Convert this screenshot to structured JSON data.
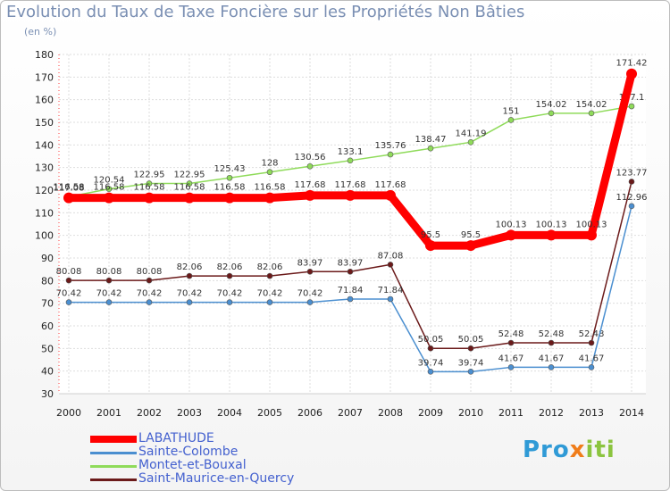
{
  "chart_data": {
    "type": "line",
    "title": "Evolution du Taux de Taxe Foncière sur les Propriétés Non Bâties",
    "subtitle": "(en %)",
    "ylim": [
      30,
      180
    ],
    "yticks": [
      30,
      40,
      50,
      60,
      70,
      80,
      90,
      100,
      110,
      120,
      130,
      140,
      150,
      160,
      170,
      180
    ],
    "categories": [
      "2000",
      "2001",
      "2002",
      "2003",
      "2004",
      "2005",
      "2006",
      "2007",
      "2008",
      "2009",
      "2010",
      "2011",
      "2012",
      "2013",
      "2014"
    ],
    "series": [
      {
        "name": "Saint-Maurice-en-Quercy",
        "color": "#6b1a1a",
        "values": [
          80.08,
          80.08,
          80.08,
          82.06,
          82.06,
          82.06,
          83.97,
          83.97,
          87.08,
          50.05,
          50.05,
          52.48,
          52.48,
          52.48,
          123.77
        ],
        "labels": [
          "80.08",
          "80.08",
          "80.08",
          "82.06",
          "82.06",
          "82.06",
          "83.97",
          "83.97",
          "87.08",
          "50.05",
          "50.05",
          "52.48",
          "52.48",
          "52.48",
          "123.77"
        ]
      },
      {
        "name": "Sainte-Colombe",
        "color": "#4b8fd0",
        "values": [
          70.42,
          70.42,
          70.42,
          70.42,
          70.42,
          70.42,
          70.42,
          71.84,
          71.84,
          39.74,
          39.74,
          41.67,
          41.67,
          41.67,
          112.96
        ],
        "labels": [
          "70.42",
          "70.42",
          "70.42",
          "70.42",
          "70.42",
          "70.42",
          "70.42",
          "71.84",
          "71.84",
          "39.74",
          "39.74",
          "41.67",
          "41.67",
          "41.67",
          "112.96"
        ]
      },
      {
        "name": "Montet-et-Bouxal",
        "color": "#8fdb5a",
        "values": [
          117.08,
          120.54,
          122.95,
          122.95,
          125.43,
          128,
          130.56,
          133.1,
          135.76,
          138.47,
          141.19,
          151,
          154.02,
          154.02,
          157.1
        ],
        "labels": [
          "117.08",
          "120.54",
          "122.95",
          "122.95",
          "125.43",
          "128",
          "130.56",
          "133.1",
          "135.76",
          "138.47",
          "141.19",
          "151",
          "154.02",
          "154.02",
          "157.1"
        ]
      },
      {
        "name": "LABATHUDE",
        "color": "#ff0000",
        "values": [
          116.58,
          116.58,
          116.58,
          116.58,
          116.58,
          116.58,
          117.68,
          117.68,
          117.68,
          95.5,
          95.5,
          100.13,
          100.13,
          100.13,
          171.42
        ],
        "labels": [
          "116.58",
          "116.58",
          "116.58",
          "116.58",
          "116.58",
          "116.58",
          "117.68",
          "117.68",
          "117.68",
          "95.5",
          "95.5",
          "100.13",
          "100.13",
          "100.13",
          "171.42"
        ]
      }
    ],
    "legend": [
      "LABATHUDE",
      "Sainte-Colombe",
      "Montet-et-Bouxal",
      "Saint-Maurice-en-Quercy"
    ]
  },
  "branding": {
    "parts": [
      "Pro",
      "x",
      "iti"
    ]
  }
}
